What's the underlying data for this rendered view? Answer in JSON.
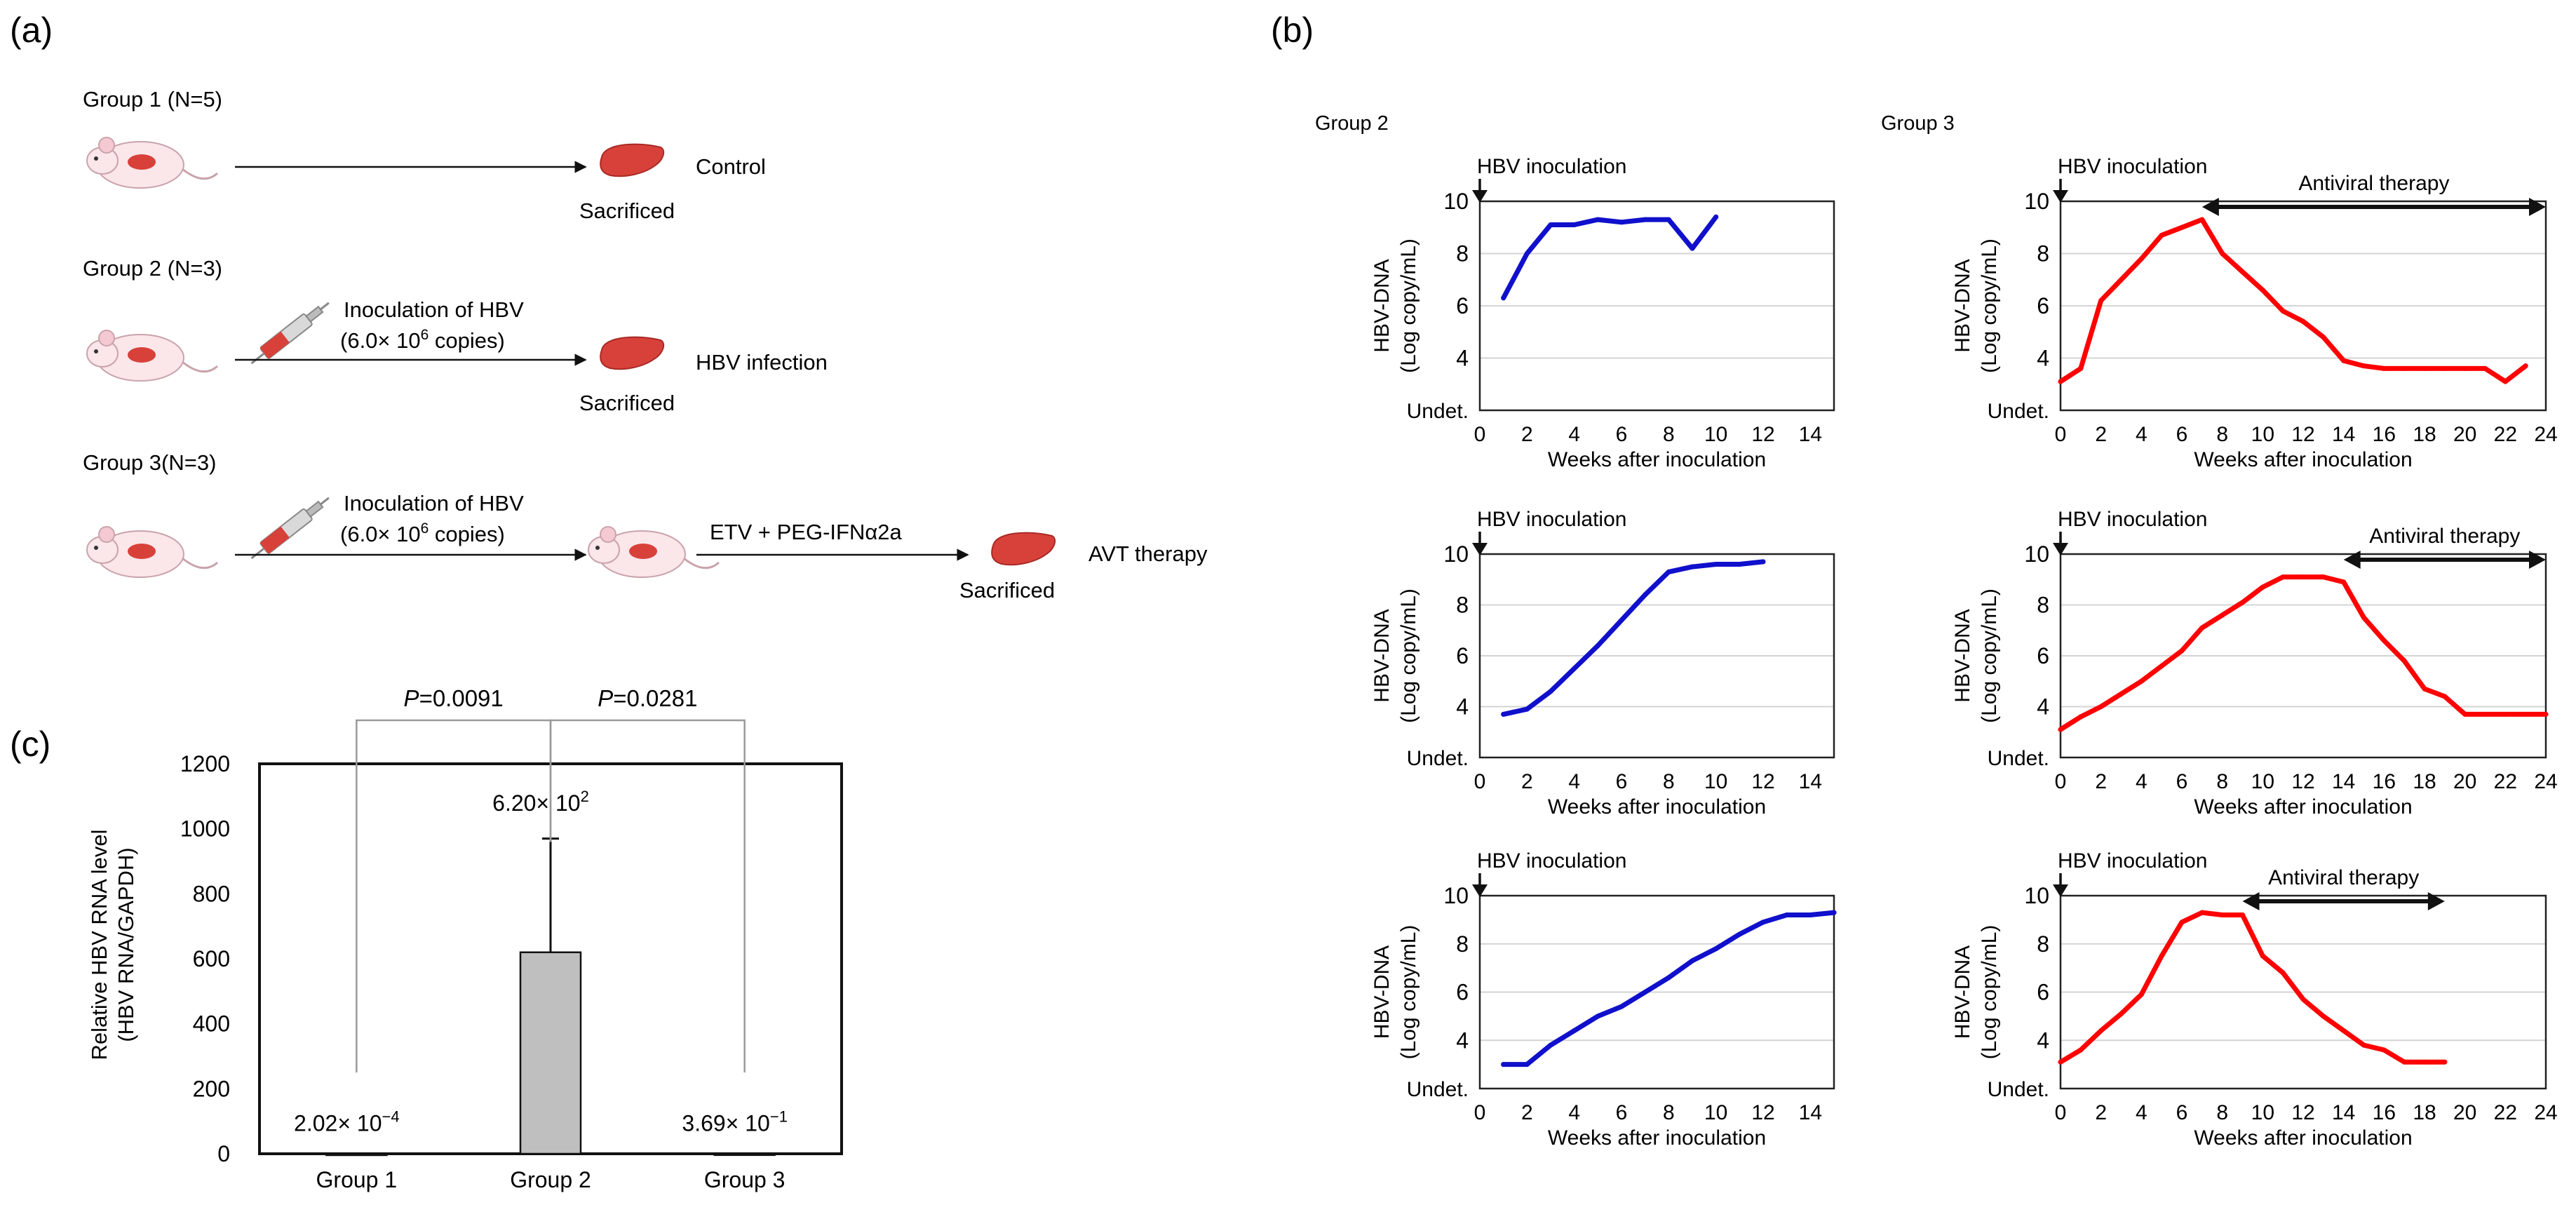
{
  "panel_labels": {
    "a": "(a)",
    "b": "(b)",
    "c": "(c)"
  },
  "colors": {
    "group2_line": "#1010cc",
    "group3_line": "#ff0000",
    "bar_fill": "#bfbfbf",
    "liver": "#d8413a"
  },
  "panel_a": {
    "groups": [
      {
        "title": "Group 1 (N=5)",
        "outcome": "Control",
        "sacrificed": "Sacrificed"
      },
      {
        "title": "Group 2 (N=3)",
        "outcome": "HBV infection",
        "sacrificed": "Sacrificed",
        "inoculation": "Inoculation of HBV",
        "copies_prefix": "(6.0× 10",
        "copies_exp": "6",
        "copies_suffix": " copies)"
      },
      {
        "title": "Group 3(N=3)",
        "outcome": "AVT therapy",
        "sacrificed": "Sacrificed",
        "inoculation": "Inoculation of HBV",
        "copies_prefix": "(6.0× 10",
        "copies_exp": "6",
        "copies_suffix": " copies)",
        "treatment": "ETV  + PEG-IFNα2a"
      }
    ],
    "icons": [
      "mouse-icon",
      "liver-icon",
      "syringe-icon"
    ]
  },
  "panel_b": {
    "column_titles": [
      "Group 2",
      "Group 3"
    ],
    "inoculation_label": "HBV inoculation",
    "therapy_label": "Antiviral therapy",
    "ylabel_line1": "HBV-DNA",
    "ylabel_line2": "(Log copy/mL)",
    "xlabel": "Weeks after inoculation"
  },
  "chart_data": [
    {
      "id": "g2a",
      "type": "line",
      "group": "Group 2",
      "color": "#1010cc",
      "xlim": [
        0,
        15
      ],
      "xticks": [
        0,
        2,
        4,
        6,
        8,
        10,
        12,
        14
      ],
      "ylim": [
        2,
        10
      ],
      "yticks": [
        4,
        6,
        8,
        10
      ],
      "ybottom_label": "Undet.",
      "x": [
        1,
        2,
        3,
        4,
        5,
        6,
        7,
        8,
        9,
        10
      ],
      "y": [
        6.3,
        8.0,
        9.1,
        9.1,
        9.3,
        9.2,
        9.3,
        9.3,
        8.2,
        9.4
      ]
    },
    {
      "id": "g3a",
      "type": "line",
      "group": "Group 3",
      "color": "#ff0000",
      "xlim": [
        0,
        24
      ],
      "xticks": [
        0,
        2,
        4,
        6,
        8,
        10,
        12,
        14,
        16,
        18,
        20,
        22,
        24
      ],
      "ylim": [
        2,
        10
      ],
      "yticks": [
        4,
        6,
        8,
        10
      ],
      "ybottom_label": "Undet.",
      "x": [
        0,
        1,
        2,
        3,
        4,
        5,
        6,
        7,
        8,
        9,
        10,
        11,
        12,
        13,
        14,
        15,
        16,
        17,
        18,
        19,
        20,
        21,
        22,
        23
      ],
      "y": [
        3.1,
        3.6,
        6.2,
        7.0,
        7.8,
        8.7,
        9.0,
        9.3,
        8.0,
        7.3,
        6.6,
        5.8,
        5.4,
        4.8,
        3.9,
        3.7,
        3.6,
        3.6,
        3.6,
        3.6,
        3.6,
        3.6,
        3.1,
        3.7
      ],
      "therapy_range": [
        7,
        24
      ]
    },
    {
      "id": "g2b",
      "type": "line",
      "group": "Group 2",
      "color": "#1010cc",
      "xlim": [
        0,
        15
      ],
      "xticks": [
        0,
        2,
        4,
        6,
        8,
        10,
        12,
        14
      ],
      "ylim": [
        2,
        10
      ],
      "yticks": [
        4,
        6,
        8,
        10
      ],
      "ybottom_label": "Undet.",
      "x": [
        1,
        2,
        3,
        4,
        5,
        6,
        7,
        8,
        9,
        10,
        11,
        12
      ],
      "y": [
        3.7,
        3.9,
        4.6,
        5.5,
        6.4,
        7.4,
        8.4,
        9.3,
        9.5,
        9.6,
        9.6,
        9.7
      ]
    },
    {
      "id": "g3b",
      "type": "line",
      "group": "Group 3",
      "color": "#ff0000",
      "xlim": [
        0,
        24
      ],
      "xticks": [
        0,
        2,
        4,
        6,
        8,
        10,
        12,
        14,
        16,
        18,
        20,
        22,
        24
      ],
      "ylim": [
        2,
        10
      ],
      "yticks": [
        4,
        6,
        8,
        10
      ],
      "ybottom_label": "Undet.",
      "x": [
        0,
        1,
        2,
        3,
        4,
        5,
        6,
        7,
        8,
        9,
        10,
        11,
        12,
        13,
        14,
        15,
        16,
        17,
        18,
        19,
        20,
        21,
        22,
        23,
        24
      ],
      "y": [
        3.1,
        3.6,
        4.0,
        4.5,
        5.0,
        5.6,
        6.2,
        7.1,
        7.6,
        8.1,
        8.7,
        9.1,
        9.1,
        9.1,
        8.9,
        7.5,
        6.6,
        5.8,
        4.7,
        4.4,
        3.7,
        3.7,
        3.7,
        3.7,
        3.7
      ],
      "therapy_range": [
        14,
        24
      ]
    },
    {
      "id": "g2c",
      "type": "line",
      "group": "Group 2",
      "color": "#1010cc",
      "xlim": [
        0,
        15
      ],
      "xticks": [
        0,
        2,
        4,
        6,
        8,
        10,
        12,
        14
      ],
      "ylim": [
        2,
        10
      ],
      "yticks": [
        4,
        6,
        8,
        10
      ],
      "ybottom_label": "Undet.",
      "x": [
        1,
        2,
        3,
        4,
        5,
        6,
        7,
        8,
        9,
        10,
        11,
        12,
        13,
        14,
        15
      ],
      "y": [
        3.0,
        3.0,
        3.8,
        4.4,
        5.0,
        5.4,
        6.0,
        6.6,
        7.3,
        7.8,
        8.4,
        8.9,
        9.2,
        9.2,
        9.3
      ]
    },
    {
      "id": "g3c",
      "type": "line",
      "group": "Group 3",
      "color": "#ff0000",
      "xlim": [
        0,
        24
      ],
      "xticks": [
        0,
        2,
        4,
        6,
        8,
        10,
        12,
        14,
        16,
        18,
        20,
        22,
        24
      ],
      "ylim": [
        2,
        10
      ],
      "yticks": [
        4,
        6,
        8,
        10
      ],
      "ybottom_label": "Undet.",
      "x": [
        0,
        1,
        2,
        3,
        4,
        5,
        6,
        7,
        8,
        9,
        10,
        11,
        12,
        13,
        14,
        15,
        16,
        17,
        18,
        19
      ],
      "y": [
        3.1,
        3.6,
        4.4,
        5.1,
        5.9,
        7.5,
        8.9,
        9.3,
        9.2,
        9.2,
        7.5,
        6.8,
        5.7,
        5.0,
        4.4,
        3.8,
        3.6,
        3.1,
        3.1,
        3.1
      ],
      "therapy_range": [
        9,
        19
      ]
    },
    {
      "id": "c",
      "type": "bar",
      "categories": [
        "Group 1",
        "Group 2",
        "Group 3"
      ],
      "values": [
        0.000202,
        620,
        0.369
      ],
      "error_upper": [
        0,
        970,
        0
      ],
      "value_labels": [
        "2.02× 10",
        "6.20× 10",
        "3.69× 10"
      ],
      "value_label_exps": [
        "−4",
        "2",
        "−1"
      ],
      "ylim": [
        0,
        1200
      ],
      "yticks": [
        0,
        200,
        400,
        600,
        800,
        1000,
        1200
      ],
      "ylabel_line1": "Relative HBV RNA level",
      "ylabel_line2": "(HBV RNA/GAPDH)",
      "comparisons": [
        {
          "from": 0,
          "to": 1,
          "p_label": "P",
          "p_value": "=0.0091"
        },
        {
          "from": 1,
          "to": 2,
          "p_label": "P",
          "p_value": "=0.0281"
        }
      ]
    }
  ]
}
